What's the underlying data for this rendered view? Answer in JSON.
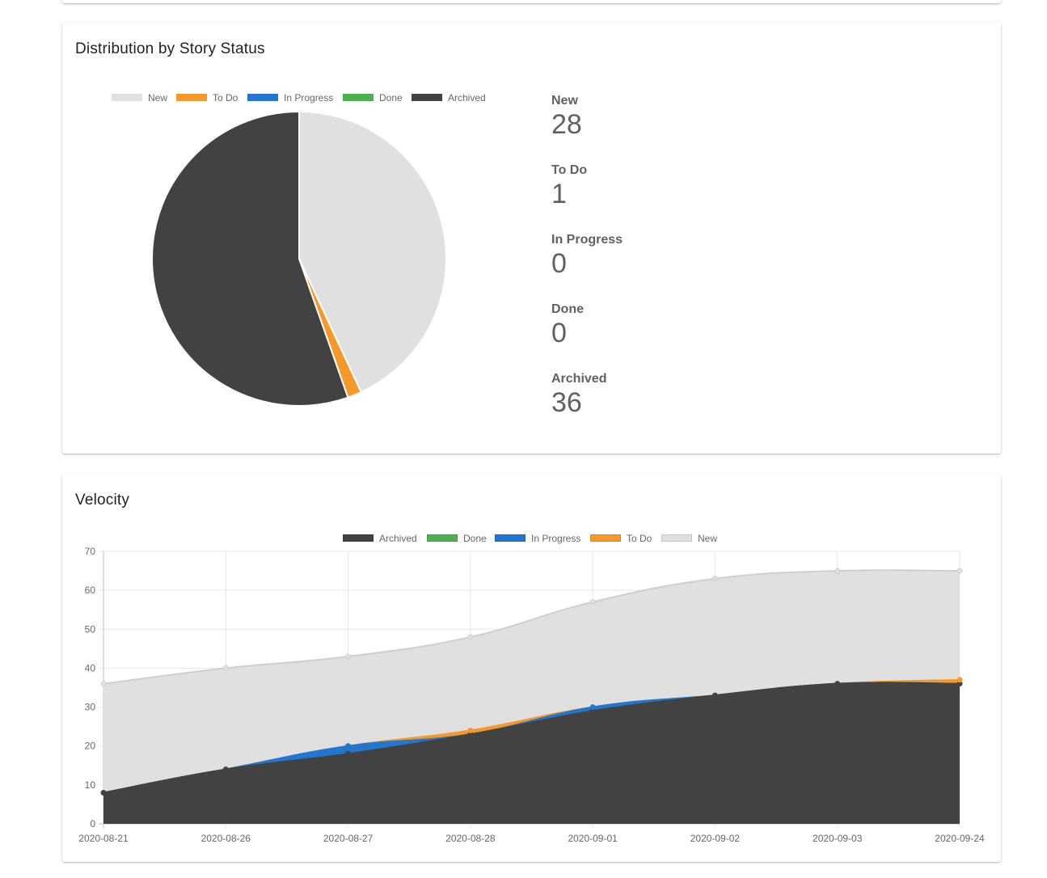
{
  "distribution": {
    "title": "Distribution by Story Status",
    "legend": [
      {
        "label": "New",
        "color": "#e0e0e0"
      },
      {
        "label": "To Do",
        "color": "#f7992a"
      },
      {
        "label": "In Progress",
        "color": "#2176d2"
      },
      {
        "label": "Done",
        "color": "#4caf50"
      },
      {
        "label": "Archived",
        "color": "#424242"
      }
    ],
    "stats": [
      {
        "label": "New",
        "value": "28"
      },
      {
        "label": "To Do",
        "value": "1"
      },
      {
        "label": "In Progress",
        "value": "0"
      },
      {
        "label": "Done",
        "value": "0"
      },
      {
        "label": "Archived",
        "value": "36"
      }
    ]
  },
  "velocity": {
    "title": "Velocity",
    "legend": [
      {
        "label": "Archived",
        "color": "#424242"
      },
      {
        "label": "Done",
        "color": "#4caf50"
      },
      {
        "label": "In Progress",
        "color": "#2176d2"
      },
      {
        "label": "To Do",
        "color": "#f7992a"
      },
      {
        "label": "New",
        "color": "#e0e0e0"
      }
    ]
  },
  "chart_data": [
    {
      "type": "pie",
      "title": "Distribution by Story Status",
      "categories": [
        "New",
        "To Do",
        "In Progress",
        "Done",
        "Archived"
      ],
      "values": [
        28,
        1,
        0,
        0,
        36
      ],
      "colors": [
        "#e0e0e0",
        "#f7992a",
        "#2176d2",
        "#4caf50",
        "#424242"
      ],
      "legend_position": "top"
    },
    {
      "type": "area",
      "stacked": true,
      "title": "Velocity",
      "x": [
        "2020-08-21",
        "2020-08-26",
        "2020-08-27",
        "2020-08-28",
        "2020-09-01",
        "2020-09-02",
        "2020-09-03",
        "2020-09-24"
      ],
      "series": [
        {
          "name": "Archived",
          "color": "#424242",
          "values": [
            8,
            14,
            18,
            23,
            29,
            33,
            36,
            36
          ]
        },
        {
          "name": "Done",
          "color": "#4caf50",
          "values": [
            0,
            0,
            0,
            0,
            0,
            0,
            0,
            0
          ]
        },
        {
          "name": "In Progress",
          "color": "#2176d2",
          "values": [
            0,
            0,
            2,
            0,
            1,
            0,
            0,
            0
          ]
        },
        {
          "name": "To Do",
          "color": "#f7992a",
          "values": [
            0,
            0,
            0,
            1,
            0,
            0,
            0,
            1
          ]
        },
        {
          "name": "New",
          "color": "#e0e0e0",
          "values": [
            28,
            26,
            23,
            24,
            27,
            30,
            29,
            28
          ]
        }
      ],
      "ylim": [
        0,
        70
      ],
      "yticks": [
        "0",
        "10",
        "20",
        "30",
        "40",
        "50",
        "60",
        "70"
      ],
      "grid": true,
      "legend_position": "top"
    }
  ]
}
